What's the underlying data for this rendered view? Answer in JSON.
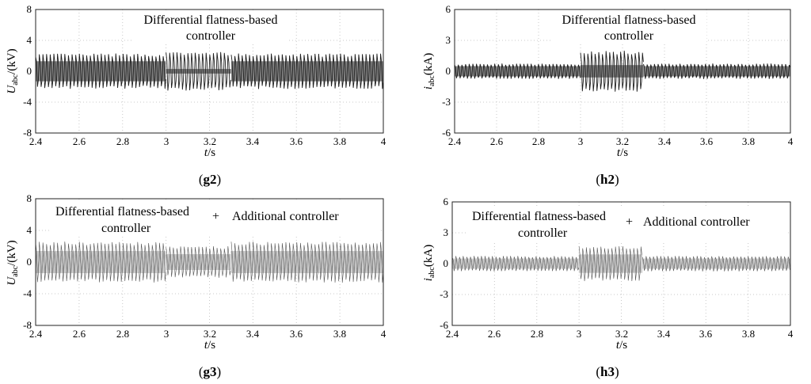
{
  "colors": {
    "dark": "#111111",
    "light": "#9a9a9a",
    "grid": "#c8c8c8",
    "axis": "#222222"
  },
  "chart_data": [
    {
      "id": "g2",
      "type": "line",
      "panel_label": "g2",
      "x_label": "t",
      "x_unit": "/s",
      "y_label": "U",
      "y_sub": "abc",
      "y_unit": "/(kV)",
      "xlim": [
        2.4,
        4
      ],
      "ylim": [
        -8,
        8
      ],
      "grid": true,
      "x_ticks": [
        "2.4",
        "2.6",
        "2.8",
        "3",
        "3.2",
        "3.4",
        "3.6",
        "3.8",
        "4"
      ],
      "y_ticks": [
        "8",
        "4",
        "0",
        "-4",
        "-8"
      ],
      "annotations": [
        "Differential flatness-based",
        "controller"
      ],
      "style": "dark",
      "segments": [
        {
          "t0": 2.4,
          "t1": 3.0,
          "amp": 2.3,
          "fill": 1.3
        },
        {
          "t0": 3.0,
          "t1": 3.3,
          "amp": 2.5,
          "fill": 0.3
        },
        {
          "t0": 3.3,
          "t1": 4.0,
          "amp": 2.3,
          "fill": 1.3
        }
      ]
    },
    {
      "id": "h2",
      "type": "line",
      "panel_label": "h2",
      "x_label": "t",
      "x_unit": "/s",
      "y_label": "i",
      "y_sub": "abc",
      "y_unit": "(kA)",
      "xlim": [
        2.4,
        4
      ],
      "ylim": [
        -6,
        6
      ],
      "grid": true,
      "x_ticks": [
        "2.4",
        "2.6",
        "2.8",
        "3",
        "3.2",
        "3.4",
        "3.6",
        "3.8",
        "4"
      ],
      "y_ticks": [
        "6",
        "3",
        "0",
        "-3",
        "-6"
      ],
      "annotations": [
        "Differential flatness-based",
        "controller"
      ],
      "style": "dark",
      "segments": [
        {
          "t0": 2.4,
          "t1": 3.0,
          "amp": 0.75,
          "fill": 0.5
        },
        {
          "t0": 3.0,
          "t1": 3.3,
          "amp": 2.0,
          "fill": 0.6
        },
        {
          "t0": 3.3,
          "t1": 4.0,
          "amp": 0.75,
          "fill": 0.5
        }
      ]
    },
    {
      "id": "g3",
      "type": "line",
      "panel_label": "g3",
      "x_label": "t",
      "x_unit": "/s",
      "y_label": "U",
      "y_sub": "abc",
      "y_unit": "/(kV)",
      "xlim": [
        2.4,
        4
      ],
      "ylim": [
        -8,
        8
      ],
      "grid": true,
      "x_ticks": [
        "2.4",
        "2.6",
        "2.8",
        "3",
        "3.2",
        "3.4",
        "3.6",
        "3.8",
        "4"
      ],
      "y_ticks": [
        "8",
        "4",
        "0",
        "-4",
        "-8"
      ],
      "annotations": [
        "Differential flatness-based",
        "controller",
        "+",
        "Additional controller"
      ],
      "style": "light",
      "segments": [
        {
          "t0": 2.4,
          "t1": 3.0,
          "amp": 2.6,
          "fill": 1.4
        },
        {
          "t0": 3.0,
          "t1": 3.3,
          "amp": 2.0,
          "fill": 1.0
        },
        {
          "t0": 3.3,
          "t1": 4.0,
          "amp": 2.6,
          "fill": 1.4
        }
      ]
    },
    {
      "id": "h3",
      "type": "line",
      "panel_label": "h3",
      "x_label": "t",
      "x_unit": "/s",
      "y_label": "i",
      "y_sub": "abc",
      "y_unit": "(kA)",
      "xlim": [
        2.4,
        4
      ],
      "ylim": [
        -6,
        6
      ],
      "grid": true,
      "x_ticks": [
        "2.4",
        "2.6",
        "2.8",
        "3",
        "3.2",
        "3.4",
        "3.6",
        "3.8",
        "4"
      ],
      "y_ticks": [
        "6",
        "3",
        "0",
        "-3",
        "-6"
      ],
      "annotations": [
        "Differential flatness-based",
        "controller",
        "+",
        "Additional controller"
      ],
      "style": "light",
      "segments": [
        {
          "t0": 2.4,
          "t1": 3.0,
          "amp": 0.75,
          "fill": 0.5
        },
        {
          "t0": 3.0,
          "t1": 3.3,
          "amp": 1.7,
          "fill": 0.9
        },
        {
          "t0": 3.3,
          "t1": 4.0,
          "amp": 0.75,
          "fill": 0.5
        }
      ]
    }
  ]
}
